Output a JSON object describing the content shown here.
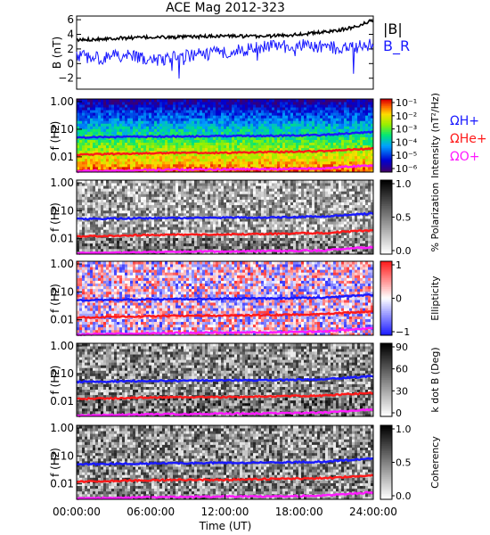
{
  "title": "ACE Mag 2012-323",
  "colors": {
    "bmag": "#000000",
    "br": "#1a1aff",
    "h_line": "#1a1aff",
    "he_line": "#ff1a1a",
    "o_line": "#ff1aff"
  },
  "chart_data": [
    {
      "type": "line",
      "ylabel": "B (nT)",
      "ylim": [
        -3.5,
        6.5
      ],
      "yticks": [
        6,
        4,
        2,
        0,
        -2
      ],
      "yticklabels": [
        "6",
        "4",
        "2",
        "0",
        "−2"
      ],
      "x_hours": [
        0,
        2,
        4,
        6,
        8,
        10,
        12,
        14,
        16,
        18,
        20,
        22,
        23.5,
        24
      ],
      "series": [
        {
          "name": "|B|",
          "values": [
            3.2,
            3.4,
            3.5,
            3.6,
            3.6,
            3.7,
            3.8,
            3.7,
            3.8,
            4.0,
            4.3,
            4.8,
            5.6,
            6.0
          ]
        },
        {
          "name": "B_R",
          "values": [
            1.0,
            0.8,
            1.2,
            0.4,
            0.9,
            1.2,
            1.6,
            2.0,
            2.5,
            2.6,
            2.2,
            2.1,
            2.4,
            2.6
          ]
        }
      ],
      "legend": [
        "|B|",
        "B_R"
      ]
    },
    {
      "type": "heatmap",
      "ylabel": "f (Hz)",
      "yticks": [
        "1.00",
        "0.10",
        "0.01"
      ],
      "colorbar_label": "Intensity (nT²/Hz)",
      "colorbar_ticks": [
        "10⁻¹",
        "10⁻²",
        "10⁻³",
        "10⁻⁴",
        "10⁻⁵",
        "10⁻⁶"
      ],
      "legend": [
        "ΩH+",
        "ΩHe+",
        "ΩO+"
      ]
    },
    {
      "type": "heatmap",
      "ylabel": "f (Hz)",
      "yticks": [
        "1.00",
        "0.10",
        "0.01"
      ],
      "colorbar_label": "% Polarization",
      "colorbar_ticks": [
        "1.0",
        "0.5",
        "0.0"
      ]
    },
    {
      "type": "heatmap",
      "ylabel": "f (Hz)",
      "yticks": [
        "1.00",
        "0.10",
        "0.01"
      ],
      "colorbar_label": "Ellipticity",
      "colorbar_ticks": [
        "1",
        "0",
        "−1"
      ]
    },
    {
      "type": "heatmap",
      "ylabel": "f (Hz)",
      "yticks": [
        "1.00",
        "0.10",
        "0.01"
      ],
      "colorbar_label": "k dot B (Deg)",
      "colorbar_ticks": [
        "90",
        "60",
        "30",
        "0"
      ]
    },
    {
      "type": "heatmap",
      "ylabel": "f (Hz)",
      "yticks": [
        "1.00",
        "0.10",
        "0.01"
      ],
      "colorbar_label": "Coherency",
      "colorbar_ticks": [
        "1.0",
        "0.5",
        "0.0"
      ]
    }
  ],
  "gyro_lines_hz": {
    "x_hours": [
      0,
      4,
      8,
      12,
      16,
      20,
      24
    ],
    "h": [
      0.05,
      0.053,
      0.055,
      0.057,
      0.058,
      0.062,
      0.08
    ],
    "he": [
      0.012,
      0.013,
      0.014,
      0.014,
      0.015,
      0.016,
      0.02
    ],
    "o": [
      0.003,
      0.0032,
      0.0034,
      0.0035,
      0.0036,
      0.0038,
      0.005
    ]
  },
  "xaxis": {
    "ticks": [
      "00:00:00",
      "06:00:00",
      "12:00:00",
      "18:00:00",
      "24:00:00"
    ],
    "label": "Time (UT)"
  }
}
